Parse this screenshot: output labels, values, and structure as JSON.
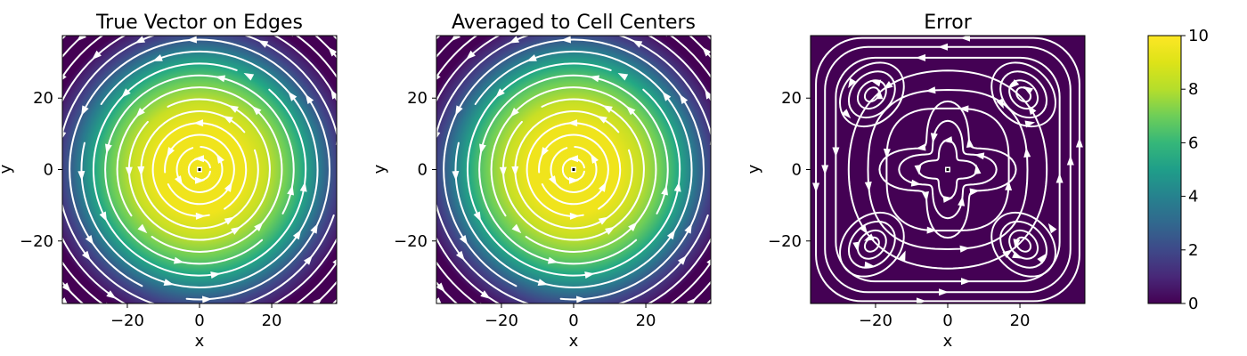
{
  "figure": {
    "colorbar": {
      "colormap": "viridis",
      "range": [
        0,
        10
      ],
      "ticks": [
        {
          "value": 0,
          "label": "0"
        },
        {
          "value": 2,
          "label": "2"
        },
        {
          "value": 4,
          "label": "4"
        },
        {
          "value": 6,
          "label": "6"
        },
        {
          "value": 8,
          "label": "8"
        },
        {
          "value": 10,
          "label": "10"
        }
      ]
    },
    "streamline_color": "#ffffff"
  },
  "chart_data": [
    {
      "type": "heatmap",
      "title": "True Vector on Edges",
      "xlabel": "x",
      "ylabel": "y",
      "xlim": [
        -38,
        38
      ],
      "ylim": [
        -37.5,
        37.5
      ],
      "x_ticks": [
        {
          "value": -20,
          "label": "−20"
        },
        {
          "value": 0,
          "label": "0"
        },
        {
          "value": 20,
          "label": "20"
        }
      ],
      "y_ticks": [
        {
          "value": -20,
          "label": "−20"
        },
        {
          "value": 0,
          "label": "0"
        },
        {
          "value": 20,
          "label": "20"
        }
      ],
      "field": "gaussian vortex magnitude, peak 10 at center, falls to ~0 near edges",
      "peak_value": 10,
      "streamlines": "concentric circular streamlines around origin"
    },
    {
      "type": "heatmap",
      "title": "Averaged to Cell Centers",
      "xlabel": "x",
      "ylabel": "y",
      "xlim": [
        -38,
        38
      ],
      "ylim": [
        -37.5,
        37.5
      ],
      "x_ticks": [
        {
          "value": -20,
          "label": "−20"
        },
        {
          "value": 0,
          "label": "0"
        },
        {
          "value": 20,
          "label": "20"
        }
      ],
      "y_ticks": [
        {
          "value": -20,
          "label": "−20"
        },
        {
          "value": 0,
          "label": "0"
        },
        {
          "value": 20,
          "label": "20"
        }
      ],
      "field": "gaussian vortex magnitude, peak 10 at center, falls to ~0 near edges",
      "peak_value": 10,
      "streamlines": "concentric circular streamlines around origin"
    },
    {
      "type": "heatmap",
      "title": "Error",
      "xlabel": "x",
      "ylabel": "y",
      "xlim": [
        -38,
        38
      ],
      "ylim": [
        -37.5,
        37.5
      ],
      "x_ticks": [
        {
          "value": -20,
          "label": "−20"
        },
        {
          "value": 0,
          "label": "0"
        },
        {
          "value": 20,
          "label": "20"
        }
      ],
      "y_ticks": [
        {
          "value": -20,
          "label": "−20"
        },
        {
          "value": 0,
          "label": "0"
        },
        {
          "value": 20,
          "label": "20"
        }
      ],
      "field": "error magnitude near 0 everywhere",
      "peak_value": 0,
      "streamlines": "closed streamlines around four vortices near (±21, ±21) plus a central star-shaped loop"
    }
  ]
}
